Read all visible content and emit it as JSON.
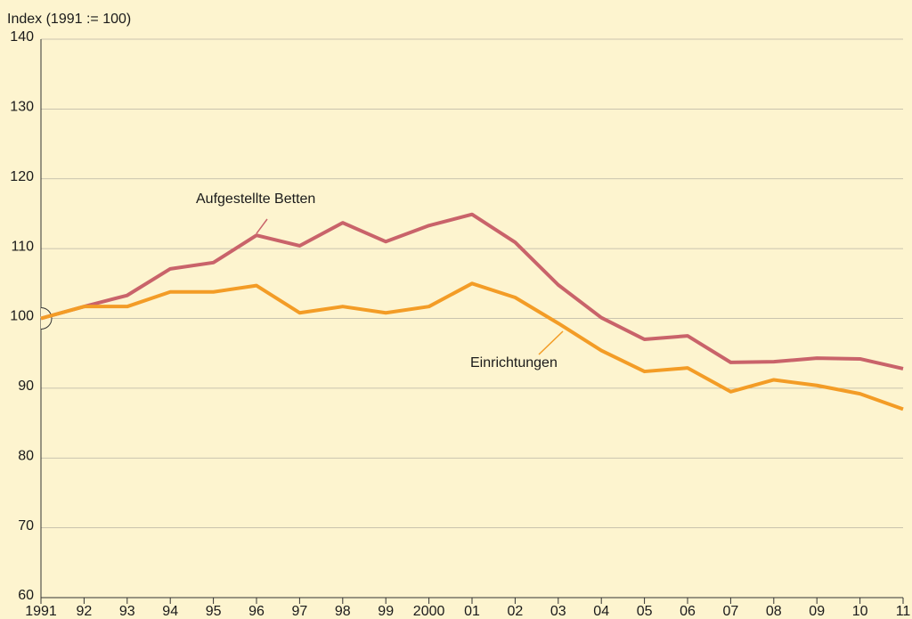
{
  "chart_data": {
    "type": "line",
    "y_label": "Index (1991 := 100)",
    "categories": [
      "1991",
      "92",
      "93",
      "94",
      "95",
      "96",
      "97",
      "98",
      "99",
      "2000",
      "01",
      "02",
      "03",
      "04",
      "05",
      "06",
      "07",
      "08",
      "09",
      "10",
      "11"
    ],
    "series": [
      {
        "name": "Aufgestellte Betten",
        "color": "#c9636a",
        "values": [
          100,
          101.7,
          103.3,
          107.1,
          108.0,
          111.9,
          110.4,
          113.7,
          111.0,
          113.3,
          114.9,
          110.9,
          104.8,
          100.1,
          97.0,
          97.5,
          93.7,
          93.8,
          94.3,
          94.2,
          92.8
        ]
      },
      {
        "name": "Einrichtungen",
        "color": "#f39c26",
        "values": [
          100,
          101.7,
          101.7,
          103.8,
          103.8,
          104.7,
          100.8,
          101.7,
          100.8,
          101.7,
          105.0,
          103.0,
          99.3,
          95.4,
          92.4,
          92.9,
          89.5,
          91.2,
          90.4,
          89.2,
          87.0
        ]
      }
    ],
    "ylim": [
      60,
      140
    ],
    "yticks": [
      60,
      70,
      80,
      90,
      100,
      110,
      120,
      130,
      140
    ],
    "grid": true
  }
}
